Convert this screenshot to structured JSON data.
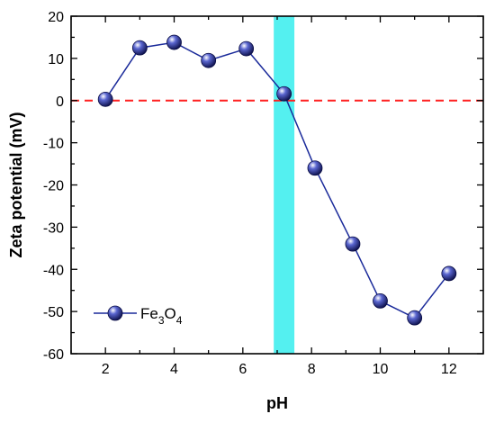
{
  "chart_data": {
    "type": "scatter",
    "title": "",
    "xlabel": "pH",
    "ylabel": "Zeta potential (mV)",
    "xlim": [
      1,
      13
    ],
    "ylim": [
      -60,
      20
    ],
    "xticks": [
      2,
      4,
      6,
      8,
      10,
      12
    ],
    "yticks": [
      20,
      10,
      0,
      -10,
      -20,
      -30,
      -40,
      -50,
      -60
    ],
    "grid": false,
    "legend_position": "bottom-left",
    "series": [
      {
        "name": "Fe3O4",
        "x": [
          2,
          3,
          4,
          5,
          6.1,
          7.2,
          8.1,
          9.2,
          10,
          11,
          12
        ],
        "y": [
          0.3,
          12.5,
          13.8,
          9.5,
          12.3,
          1.6,
          -16,
          -34,
          -47.5,
          -51.5,
          -41
        ],
        "color": "#1a2a9a",
        "marker": "circle",
        "line": true
      }
    ],
    "reference_line": {
      "y": 0,
      "color": "#ff2020",
      "style": "dashed"
    },
    "highlight_band": {
      "x_start": 6.9,
      "x_end": 7.5,
      "color": "#54f0f0"
    },
    "legend_label_parts": [
      "Fe",
      "3",
      "O",
      "4"
    ]
  }
}
